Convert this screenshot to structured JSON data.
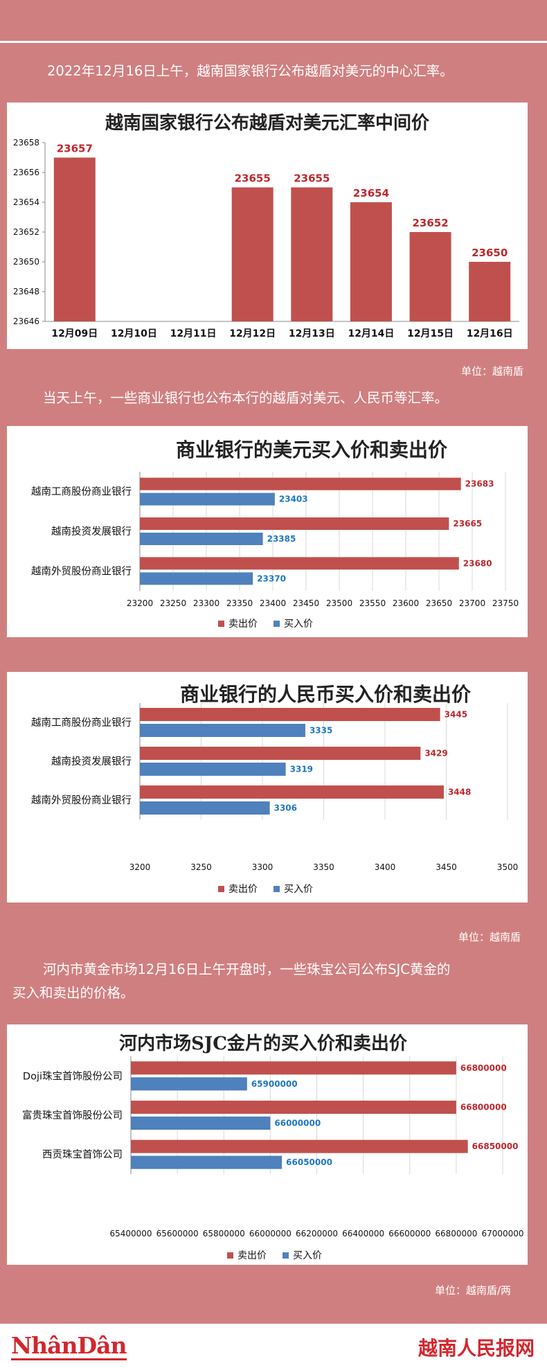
{
  "intro_text": "2022年12月16日上午，越南国家银行公布越盾对美元的中心汇率。",
  "commercial_text": "当天上午，一些商业银行也公布本行的越盾对美元、人民币等汇率。",
  "gold_text_line1": "河内市黄金市场12月16日上午开盘时，一些珠宝公司公布SJC黄金的",
  "gold_text_line2": "买入和卖出的价格。",
  "unit_1": "单位：越南盾",
  "unit_2": "单位：越南盾",
  "unit_3": "单位：越南盾/两",
  "footer": {
    "logo_left": "NhânDân",
    "logo_right": "越南人民报网"
  },
  "colors": {
    "background": "#d07f80",
    "sell": "#c0504d",
    "buy": "#4f81bd",
    "footer_red": "#d4262d"
  },
  "chart_data": [
    {
      "type": "bar",
      "title": "越南国家银行公布越盾对美元汇率中间价",
      "categories": [
        "12月09日",
        "12月10日",
        "12月11日",
        "12月12日",
        "12月13日",
        "12月14日",
        "12月15日",
        "12月16日"
      ],
      "values": [
        23657,
        null,
        null,
        23655,
        23655,
        23654,
        23652,
        23650
      ],
      "ylim": [
        23646,
        23658
      ],
      "yticks": [
        23646,
        23648,
        23650,
        23652,
        23654,
        23656,
        23658
      ],
      "grid": false
    },
    {
      "type": "bar",
      "orientation": "horizontal",
      "title": "商业银行的美元买入价和卖出价",
      "categories": [
        "越南工商股份商业银行",
        "越南投资发展银行",
        "越南外贸股份商业银行"
      ],
      "series": [
        {
          "name": "卖出价",
          "values": [
            23683,
            23665,
            23680
          ]
        },
        {
          "name": "买入价",
          "values": [
            23403,
            23385,
            23370
          ]
        }
      ],
      "xlim": [
        23200,
        23750
      ],
      "xticks": [
        23200,
        23250,
        23300,
        23350,
        23400,
        23450,
        23500,
        23550,
        23600,
        23650,
        23700,
        23750
      ],
      "legend": "bottom",
      "grid": true
    },
    {
      "type": "bar",
      "orientation": "horizontal",
      "title": "商业银行的人民币买入价和卖出价",
      "categories": [
        "越南工商股份商业银行",
        "越南投资发展银行",
        "越南外贸股份商业银行"
      ],
      "series": [
        {
          "name": "卖出价",
          "values": [
            3445,
            3429,
            3448
          ]
        },
        {
          "name": "买入价",
          "values": [
            3335,
            3319,
            3306
          ]
        }
      ],
      "xlim": [
        3200,
        3500
      ],
      "xticks": [
        3200,
        3250,
        3300,
        3350,
        3400,
        3450,
        3500
      ],
      "legend": "bottom",
      "grid": true
    },
    {
      "type": "bar",
      "orientation": "horizontal",
      "title": "河内市场SJC金片的买入价和卖出价",
      "categories": [
        "Doji珠宝首饰股份公司",
        "富贵珠宝首饰股份公司",
        "西贡珠宝首饰公司"
      ],
      "series": [
        {
          "name": "卖出价",
          "values": [
            66800000,
            66800000,
            66850000
          ]
        },
        {
          "name": "买入价",
          "values": [
            65900000,
            66000000,
            66050000
          ]
        }
      ],
      "xlim": [
        65400000,
        67000000
      ],
      "xticks": [
        65400000,
        65600000,
        65800000,
        66000000,
        66200000,
        66400000,
        66600000,
        66800000,
        67000000
      ],
      "legend": "bottom",
      "grid": true
    }
  ]
}
